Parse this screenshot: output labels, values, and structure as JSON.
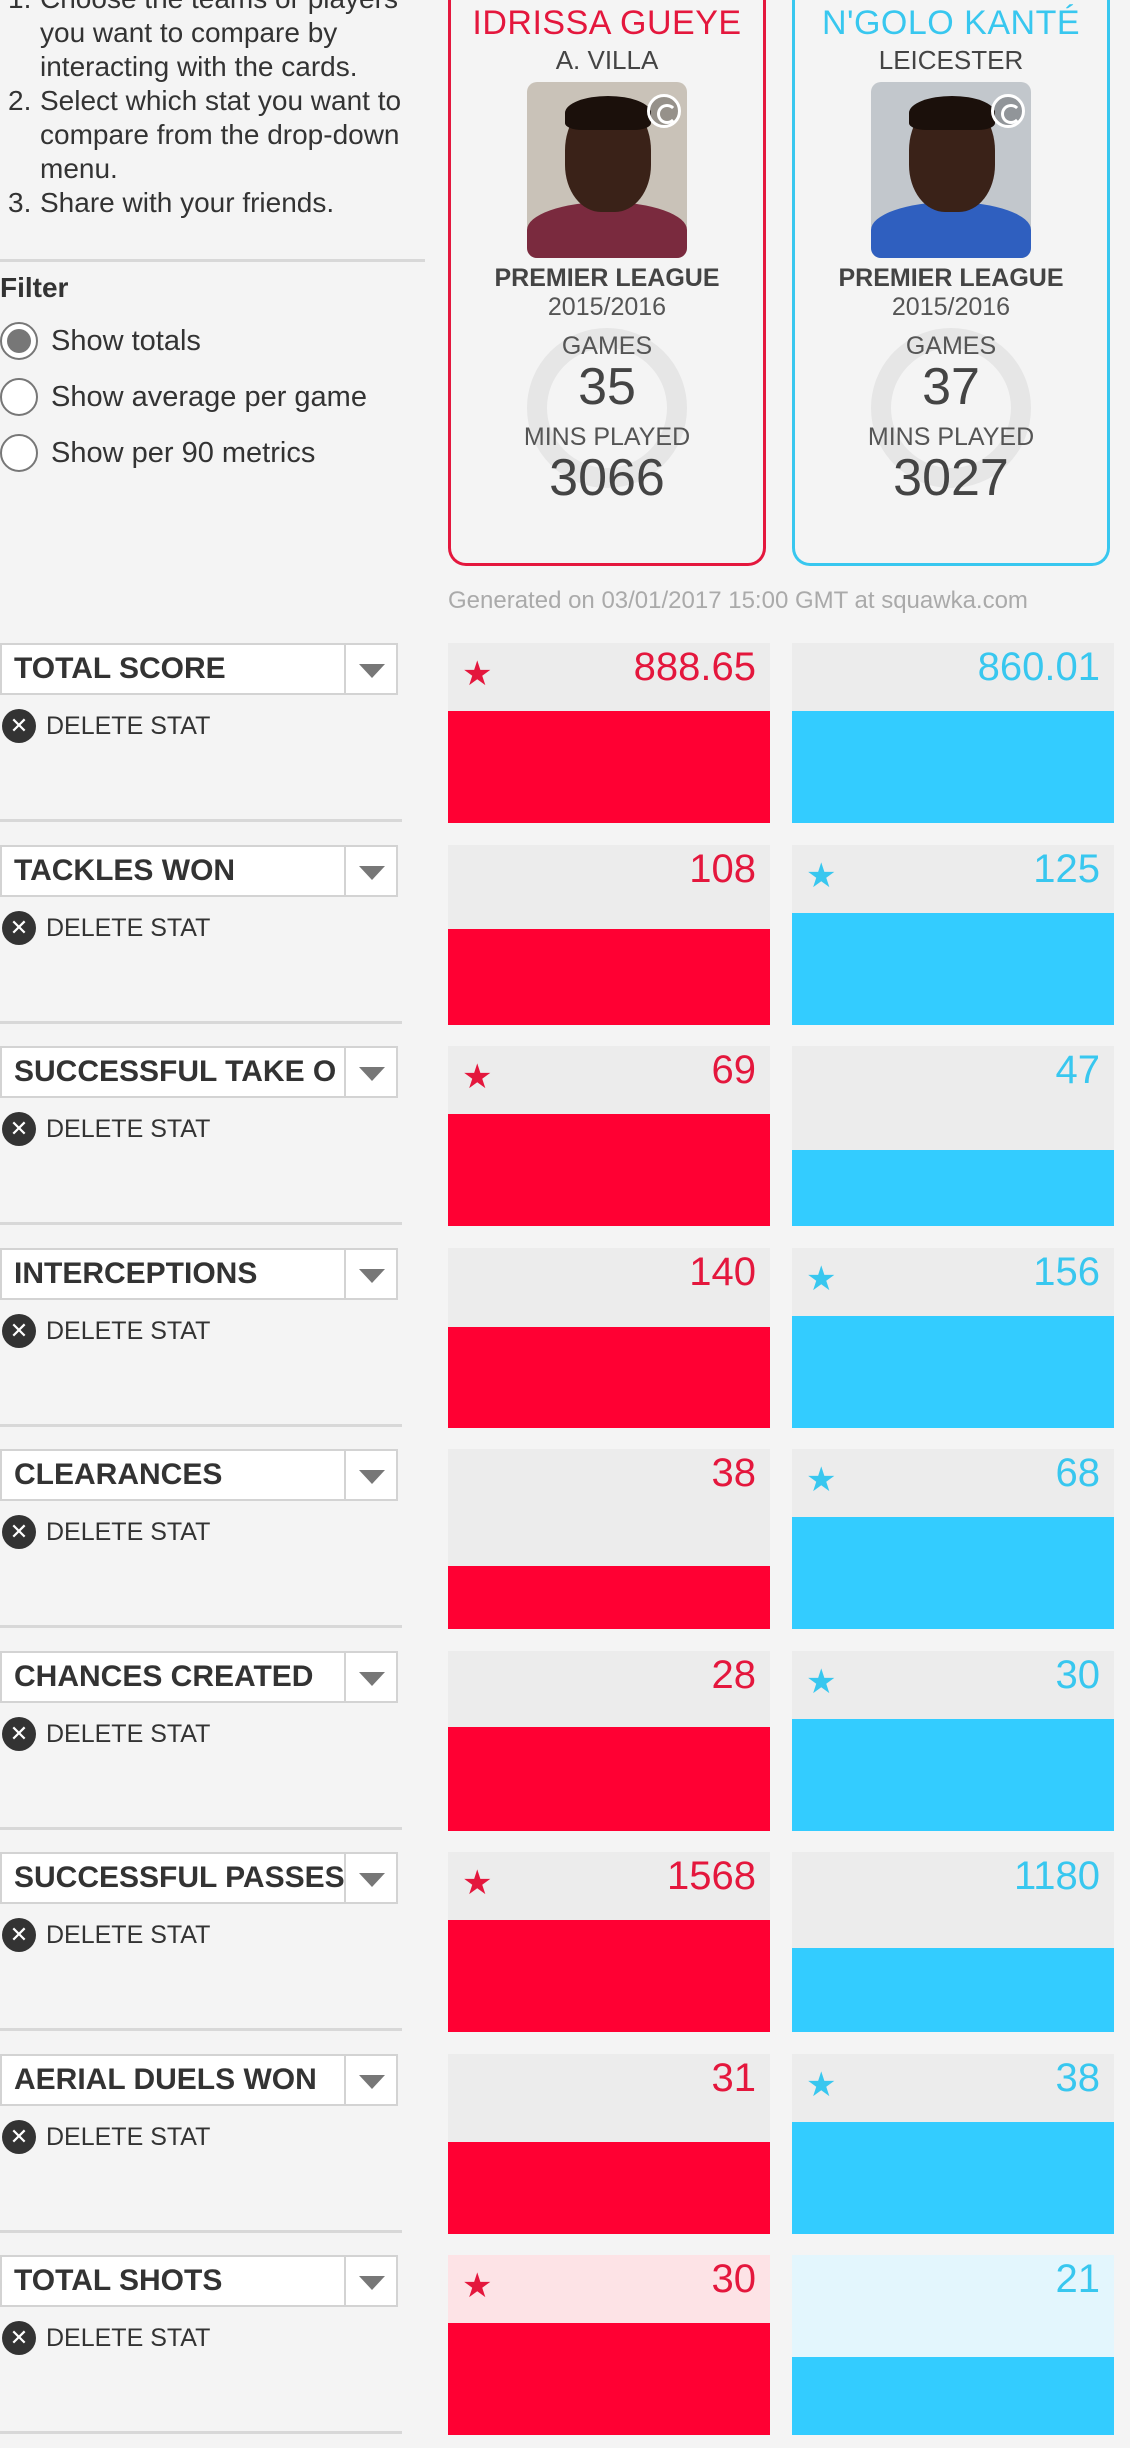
{
  "instructions": [
    {
      "num": "1.",
      "text": "Choose the teams or players you want to compare by interacting with the cards."
    },
    {
      "num": "2.",
      "text": "Select which stat you want to compare from the drop-down menu."
    },
    {
      "num": "3.",
      "text": "Share with your friends."
    }
  ],
  "filter": {
    "title": "Filter",
    "options": [
      {
        "label": "Show totals",
        "checked": true
      },
      {
        "label": "Show average per game",
        "checked": false
      },
      {
        "label": "Show per 90 metrics",
        "checked": false
      }
    ]
  },
  "players": [
    {
      "name": "IDRISSA GUEYE",
      "club": "A. VILLA",
      "league": "PREMIER LEAGUE",
      "season": "2015/2016",
      "games_label": "GAMES",
      "games": "35",
      "mins_label": "MINS PLAYED",
      "mins": "3066",
      "color": "#e4173d",
      "photo_bg": "#c9c2b8",
      "shirt": "#7a2a3e"
    },
    {
      "name": "N'GOLO KANTÉ",
      "club": "LEICESTER",
      "league": "PREMIER LEAGUE",
      "season": "2015/2016",
      "games_label": "GAMES",
      "games": "37",
      "mins_label": "MINS PLAYED",
      "mins": "3027",
      "color": "#38c7ef",
      "photo_bg": "#c2c7cc",
      "shirt": "#2f5fbf"
    }
  ],
  "generated": "Generated on 03/01/2017 15:00 GMT at squawka.com",
  "delete_label": "DELETE STAT",
  "stats": [
    {
      "label": "TOTAL SCORE",
      "left": "888.65",
      "right": "860.01",
      "left_fill": 1.0,
      "right_fill": 1.0,
      "star": "left"
    },
    {
      "label": "TACKLES WON",
      "left": "108",
      "right": "125",
      "left_fill": 0.86,
      "right_fill": 1.0,
      "star": "right"
    },
    {
      "label": "SUCCESSFUL TAKE O",
      "left": "69",
      "right": "47",
      "left_fill": 1.0,
      "right_fill": 0.68,
      "star": "left"
    },
    {
      "label": "INTERCEPTIONS",
      "left": "140",
      "right": "156",
      "left_fill": 0.9,
      "right_fill": 1.0,
      "star": "right"
    },
    {
      "label": "CLEARANCES",
      "left": "38",
      "right": "68",
      "left_fill": 0.56,
      "right_fill": 1.0,
      "star": "right"
    },
    {
      "label": "CHANCES CREATED",
      "left": "28",
      "right": "30",
      "left_fill": 0.93,
      "right_fill": 1.0,
      "star": "right"
    },
    {
      "label": "SUCCESSFUL PASSES",
      "left": "1568",
      "right": "1180",
      "left_fill": 1.0,
      "right_fill": 0.75,
      "star": "left"
    },
    {
      "label": "AERIAL DUELS WON",
      "left": "31",
      "right": "38",
      "left_fill": 0.82,
      "right_fill": 1.0,
      "star": "right"
    },
    {
      "label": "TOTAL SHOTS",
      "left": "30",
      "right": "21",
      "left_fill": 1.0,
      "right_fill": 0.7,
      "star": "left",
      "highlight": true
    }
  ]
}
